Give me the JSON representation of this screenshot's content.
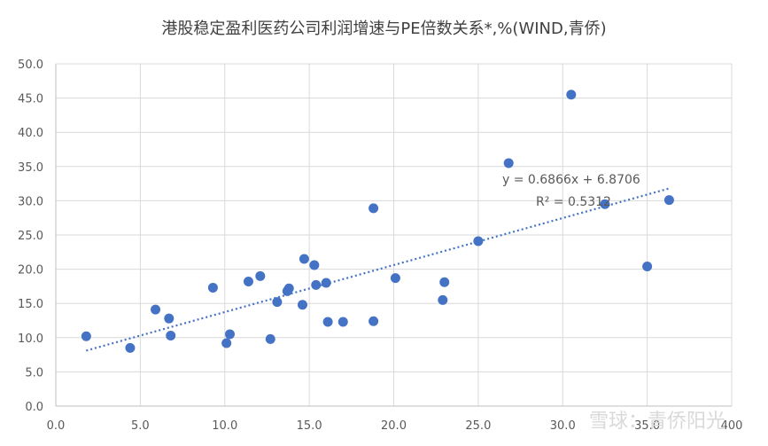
{
  "chart_data": {
    "type": "scatter",
    "title": "港股稳定盈利医药公司利润增速与PE倍数关系*,%(WIND,青侨)",
    "xlabel": "",
    "ylabel": "",
    "xlim": [
      0,
      40
    ],
    "ylim": [
      0,
      50
    ],
    "x_ticks": [
      "0.0",
      "5.0",
      "10.0",
      "15.0",
      "20.0",
      "25.0",
      "30.0",
      "35.0",
      "400"
    ],
    "y_ticks": [
      "0.0",
      "5.0",
      "10.0",
      "15.0",
      "20.0",
      "25.0",
      "30.0",
      "35.0",
      "40.0",
      "45.0",
      "50.0"
    ],
    "grid": true,
    "point_color": "#4472c4",
    "trend_color": "#4472c4",
    "points": [
      {
        "x": 1.8,
        "y": 10.2
      },
      {
        "x": 4.4,
        "y": 8.5
      },
      {
        "x": 5.9,
        "y": 14.1
      },
      {
        "x": 6.7,
        "y": 12.8
      },
      {
        "x": 6.8,
        "y": 10.3
      },
      {
        "x": 9.3,
        "y": 17.3
      },
      {
        "x": 10.1,
        "y": 9.2
      },
      {
        "x": 10.3,
        "y": 10.5
      },
      {
        "x": 11.4,
        "y": 18.2
      },
      {
        "x": 12.1,
        "y": 19.0
      },
      {
        "x": 12.7,
        "y": 9.8
      },
      {
        "x": 13.1,
        "y": 15.2
      },
      {
        "x": 13.7,
        "y": 16.8
      },
      {
        "x": 13.8,
        "y": 17.2
      },
      {
        "x": 14.6,
        "y": 14.8
      },
      {
        "x": 14.7,
        "y": 21.5
      },
      {
        "x": 15.3,
        "y": 20.6
      },
      {
        "x": 15.4,
        "y": 17.7
      },
      {
        "x": 16.0,
        "y": 18.0
      },
      {
        "x": 16.1,
        "y": 12.3
      },
      {
        "x": 17.0,
        "y": 12.3
      },
      {
        "x": 18.8,
        "y": 28.9
      },
      {
        "x": 18.8,
        "y": 12.4
      },
      {
        "x": 20.1,
        "y": 18.7
      },
      {
        "x": 22.9,
        "y": 15.5
      },
      {
        "x": 23.0,
        "y": 18.1
      },
      {
        "x": 25.0,
        "y": 24.1
      },
      {
        "x": 26.8,
        "y": 35.5
      },
      {
        "x": 30.5,
        "y": 45.5
      },
      {
        "x": 32.5,
        "y": 29.5
      },
      {
        "x": 35.0,
        "y": 20.4
      },
      {
        "x": 36.3,
        "y": 30.1
      }
    ],
    "trendline": {
      "slope": 0.6866,
      "intercept": 6.8706,
      "x_range": [
        1.8,
        36.3
      ],
      "equation": "y = 0.6866x + 6.8706",
      "r_squared": "R² = 0.5312"
    }
  },
  "watermark": "雪球：青侨阳光"
}
